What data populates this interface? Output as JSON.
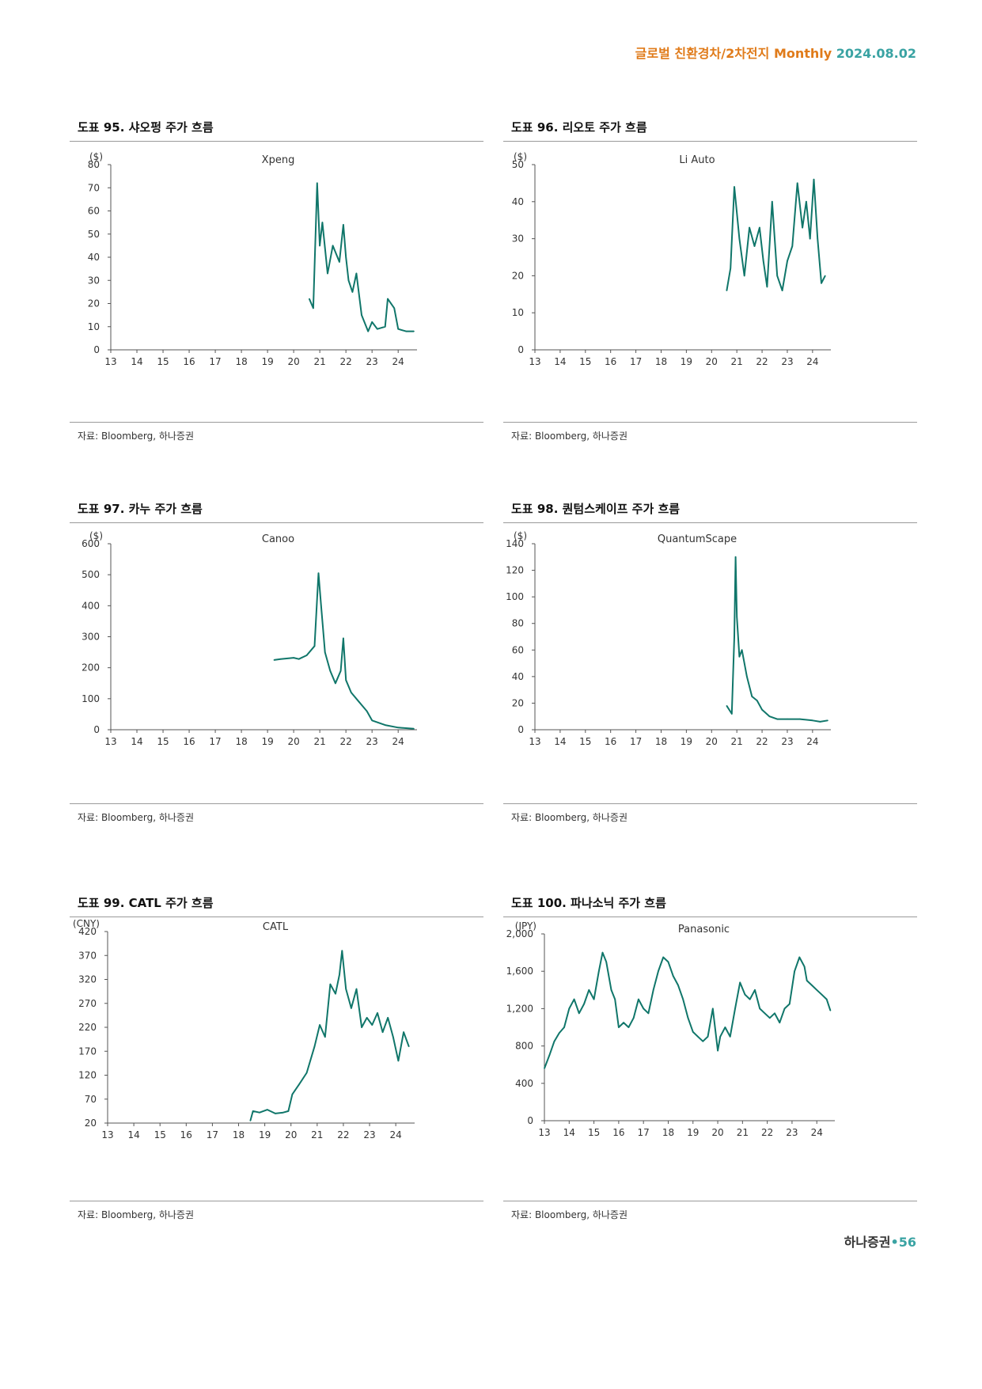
{
  "header": {
    "title": "글로벌 친환경차/2차전지 Monthly",
    "date": "2024.08.02"
  },
  "footer": {
    "brand": "하나증권",
    "dot": "•",
    "page": "56"
  },
  "colors": {
    "line": "#10766a",
    "axis": "#555555",
    "header": "#e07b1a",
    "accent": "#3aa3a3"
  },
  "charts": [
    {
      "title": "도표 95. 샤오펑 주가 흐름",
      "source": "자료: Bloomberg, 하나증권"
    },
    {
      "title": "도표 96. 리오토 주가 흐름",
      "source": "자료: Bloomberg, 하나증권"
    },
    {
      "title": "도표 97. 카누 주가 흐름",
      "source": "자료: Bloomberg, 하나증권"
    },
    {
      "title": "도표 98. 퀀텀스케이프 주가 흐름",
      "source": "자료: Bloomberg, 하나증권"
    },
    {
      "title": "도표 99. CATL 주가 흐름",
      "source": "자료: Bloomberg, 하나증권"
    },
    {
      "title": "도표 100. 파나소닉 주가 흐름",
      "source": "자료: Bloomberg, 하나증권"
    }
  ],
  "chart_data": [
    {
      "type": "line",
      "title": "Xpeng",
      "unit": "($)",
      "x": [
        20.6,
        20.75,
        20.9,
        21.0,
        21.1,
        21.3,
        21.5,
        21.75,
        21.9,
        22.0,
        22.1,
        22.25,
        22.4,
        22.6,
        22.85,
        23.0,
        23.2,
        23.5,
        23.6,
        23.85,
        24.0,
        24.3,
        24.6
      ],
      "y": [
        22,
        18,
        72,
        45,
        55,
        33,
        45,
        38,
        54,
        40,
        30,
        25,
        33,
        15,
        8,
        12,
        9,
        10,
        22,
        18,
        9,
        8,
        8
      ],
      "xticks": [
        "13",
        "14",
        "15",
        "16",
        "17",
        "18",
        "19",
        "20",
        "21",
        "22",
        "23",
        "24"
      ],
      "yticks": [
        "0",
        "10",
        "20",
        "30",
        "40",
        "50",
        "60",
        "70",
        "80"
      ],
      "ylim": [
        0,
        80
      ]
    },
    {
      "type": "line",
      "title": "Li Auto",
      "unit": "($)",
      "x": [
        20.6,
        20.75,
        20.9,
        21.1,
        21.3,
        21.5,
        21.7,
        21.9,
        22.05,
        22.2,
        22.4,
        22.6,
        22.8,
        23.0,
        23.2,
        23.4,
        23.6,
        23.75,
        23.9,
        24.05,
        24.2,
        24.35,
        24.5
      ],
      "y": [
        16,
        22,
        44,
        30,
        20,
        33,
        28,
        33,
        24,
        17,
        40,
        20,
        16,
        24,
        28,
        45,
        33,
        40,
        30,
        46,
        30,
        18,
        20
      ],
      "xticks": [
        "13",
        "14",
        "15",
        "16",
        "17",
        "18",
        "19",
        "20",
        "21",
        "22",
        "23",
        "24"
      ],
      "yticks": [
        "0",
        "10",
        "20",
        "30",
        "40",
        "50"
      ],
      "ylim": [
        0,
        50
      ]
    },
    {
      "type": "line",
      "title": "Canoo",
      "unit": "($)",
      "x": [
        19.25,
        19.5,
        20.0,
        20.2,
        20.5,
        20.8,
        20.95,
        21.05,
        21.2,
        21.4,
        21.6,
        21.8,
        21.9,
        22.0,
        22.2,
        22.5,
        22.8,
        23.0,
        23.5,
        24.0,
        24.6
      ],
      "y": [
        225,
        228,
        232,
        228,
        240,
        270,
        505,
        400,
        250,
        190,
        150,
        190,
        295,
        160,
        120,
        90,
        60,
        30,
        15,
        7,
        3
      ],
      "xticks": [
        "13",
        "14",
        "15",
        "16",
        "17",
        "18",
        "19",
        "20",
        "21",
        "22",
        "23",
        "24"
      ],
      "yticks": [
        "0",
        "100",
        "200",
        "300",
        "400",
        "500",
        "600"
      ],
      "ylim": [
        0,
        600
      ]
    },
    {
      "type": "line",
      "title": "QuantumScape",
      "unit": "($)",
      "x": [
        20.6,
        20.8,
        20.9,
        20.95,
        21.0,
        21.1,
        21.2,
        21.4,
        21.6,
        21.8,
        22.0,
        22.3,
        22.6,
        23.0,
        23.5,
        24.0,
        24.3,
        24.6
      ],
      "y": [
        18,
        12,
        70,
        130,
        85,
        55,
        60,
        40,
        25,
        22,
        15,
        10,
        8,
        8,
        8,
        7,
        6,
        7
      ],
      "xticks": [
        "13",
        "14",
        "15",
        "16",
        "17",
        "18",
        "19",
        "20",
        "21",
        "22",
        "23",
        "24"
      ],
      "yticks": [
        "0",
        "20",
        "40",
        "60",
        "80",
        "100",
        "120",
        "140"
      ],
      "ylim": [
        0,
        140
      ]
    },
    {
      "type": "line",
      "title": "CATL",
      "unit": "(CNY)",
      "x": [
        18.45,
        18.55,
        18.8,
        19.1,
        19.4,
        19.7,
        19.9,
        20.05,
        20.3,
        20.6,
        20.9,
        21.1,
        21.3,
        21.5,
        21.7,
        21.85,
        21.95,
        22.1,
        22.3,
        22.5,
        22.7,
        22.9,
        23.1,
        23.3,
        23.5,
        23.7,
        23.9,
        24.1,
        24.3,
        24.5
      ],
      "y": [
        25,
        45,
        42,
        48,
        40,
        42,
        45,
        80,
        100,
        125,
        180,
        225,
        200,
        310,
        290,
        330,
        380,
        300,
        260,
        300,
        220,
        240,
        225,
        250,
        210,
        240,
        200,
        150,
        210,
        180
      ],
      "xticks": [
        "13",
        "14",
        "15",
        "16",
        "17",
        "18",
        "19",
        "20",
        "21",
        "22",
        "23",
        "24"
      ],
      "yticks": [
        "20",
        "70",
        "120",
        "170",
        "220",
        "270",
        "320",
        "370",
        "420"
      ],
      "ylim": [
        20,
        420
      ]
    },
    {
      "type": "line",
      "title": "Panasonic",
      "unit": "(JPY)",
      "x": [
        13.0,
        13.2,
        13.4,
        13.6,
        13.8,
        14.0,
        14.2,
        14.4,
        14.6,
        14.8,
        15.0,
        15.2,
        15.35,
        15.5,
        15.7,
        15.85,
        16.0,
        16.2,
        16.4,
        16.6,
        16.8,
        17.0,
        17.2,
        17.4,
        17.6,
        17.8,
        18.0,
        18.2,
        18.4,
        18.6,
        18.8,
        19.0,
        19.2,
        19.4,
        19.6,
        19.8,
        20.0,
        20.1,
        20.3,
        20.5,
        20.7,
        20.9,
        21.1,
        21.3,
        21.5,
        21.7,
        21.9,
        22.1,
        22.3,
        22.5,
        22.7,
        22.9,
        23.1,
        23.3,
        23.5,
        23.6,
        23.8,
        24.0,
        24.2,
        24.4,
        24.55
      ],
      "y": [
        560,
        700,
        850,
        940,
        1000,
        1200,
        1300,
        1150,
        1250,
        1400,
        1300,
        1600,
        1800,
        1700,
        1400,
        1300,
        1000,
        1050,
        1000,
        1100,
        1300,
        1200,
        1150,
        1400,
        1600,
        1750,
        1700,
        1550,
        1450,
        1300,
        1100,
        950,
        900,
        850,
        900,
        1200,
        750,
        900,
        1000,
        900,
        1200,
        1480,
        1350,
        1300,
        1400,
        1200,
        1150,
        1100,
        1150,
        1050,
        1200,
        1250,
        1600,
        1750,
        1650,
        1500,
        1450,
        1400,
        1350,
        1300,
        1180
      ],
      "xticks": [
        "13",
        "14",
        "15",
        "16",
        "17",
        "18",
        "19",
        "20",
        "21",
        "22",
        "23",
        "24"
      ],
      "yticks": [
        "0",
        "400",
        "800",
        "1,200",
        "1,600",
        "2,000"
      ],
      "ylim": [
        0,
        2000
      ]
    }
  ]
}
